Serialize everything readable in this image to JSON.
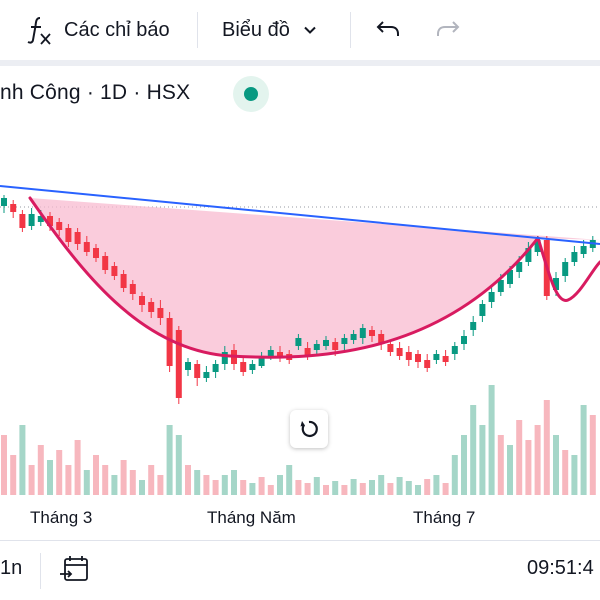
{
  "toolbar": {
    "indicators_label": "Các chỉ báo",
    "chart_type_label": "Biểu đồ",
    "icons": [
      "fx-icon",
      "chevron-down-icon",
      "undo-icon",
      "redo-icon"
    ]
  },
  "legend": {
    "symbol_text": "nh Công · 1D · HSX",
    "status_color": "#089981"
  },
  "chart_data": {
    "type": "candlestick",
    "x_ticks": [
      "Tháng 3",
      "Tháng Năm",
      "Tháng 7"
    ],
    "colors": {
      "up": "#089981",
      "down": "#f23645",
      "trendline": "#2962ff",
      "pattern": "#d81b60",
      "pattern_fill": "#f8bbd0"
    },
    "candles": [
      [
        0,
        206,
        198,
        213,
        195
      ],
      [
        1,
        204,
        212,
        218,
        200
      ],
      [
        2,
        214,
        228,
        232,
        210
      ],
      [
        3,
        226,
        214,
        230,
        208
      ],
      [
        4,
        222,
        216,
        226,
        210
      ],
      [
        5,
        216,
        226,
        231,
        212
      ],
      [
        6,
        222,
        230,
        236,
        218
      ],
      [
        7,
        228,
        242,
        247,
        224
      ],
      [
        8,
        232,
        244,
        250,
        228
      ],
      [
        9,
        242,
        252,
        256,
        236
      ],
      [
        10,
        248,
        258,
        262,
        244
      ],
      [
        11,
        256,
        270,
        274,
        252
      ],
      [
        12,
        266,
        276,
        280,
        262
      ],
      [
        13,
        274,
        288,
        292,
        270
      ],
      [
        14,
        284,
        294,
        300,
        280
      ],
      [
        15,
        296,
        305,
        312,
        292
      ],
      [
        16,
        302,
        312,
        318,
        298
      ],
      [
        17,
        308,
        318,
        325,
        300
      ],
      [
        18,
        318,
        366,
        372,
        312
      ],
      [
        19,
        330,
        398,
        404,
        326
      ],
      [
        20,
        370,
        362,
        376,
        358
      ],
      [
        21,
        364,
        378,
        386,
        360
      ],
      [
        22,
        378,
        372,
        382,
        366
      ],
      [
        23,
        372,
        364,
        378,
        360
      ],
      [
        24,
        364,
        352,
        370,
        346
      ],
      [
        25,
        350,
        364,
        370,
        344
      ],
      [
        26,
        362,
        372,
        376,
        356
      ],
      [
        27,
        370,
        364,
        374,
        360
      ],
      [
        28,
        366,
        358,
        368,
        352
      ],
      [
        29,
        356,
        350,
        360,
        346
      ],
      [
        30,
        352,
        356,
        362,
        346
      ],
      [
        31,
        354,
        360,
        364,
        350
      ],
      [
        32,
        346,
        338,
        350,
        334
      ],
      [
        33,
        348,
        356,
        360,
        342
      ],
      [
        34,
        350,
        344,
        356,
        340
      ],
      [
        35,
        346,
        340,
        350,
        336
      ],
      [
        36,
        342,
        350,
        356,
        338
      ],
      [
        37,
        344,
        338,
        350,
        334
      ],
      [
        38,
        340,
        334,
        344,
        330
      ],
      [
        39,
        338,
        328,
        344,
        324
      ],
      [
        40,
        330,
        336,
        342,
        326
      ],
      [
        41,
        334,
        344,
        350,
        330
      ],
      [
        42,
        344,
        352,
        356,
        340
      ],
      [
        43,
        348,
        356,
        360,
        342
      ],
      [
        44,
        352,
        360,
        366,
        346
      ],
      [
        45,
        354,
        362,
        368,
        350
      ],
      [
        46,
        360,
        368,
        372,
        354
      ],
      [
        47,
        360,
        354,
        364,
        350
      ],
      [
        48,
        356,
        362,
        366,
        350
      ],
      [
        49,
        354,
        346,
        360,
        342
      ],
      [
        50,
        344,
        336,
        350,
        330
      ],
      [
        51,
        330,
        322,
        336,
        316
      ],
      [
        52,
        316,
        304,
        322,
        300
      ],
      [
        53,
        302,
        292,
        308,
        286
      ],
      [
        54,
        292,
        280,
        296,
        274
      ],
      [
        55,
        284,
        270,
        288,
        266
      ],
      [
        56,
        272,
        262,
        278,
        256
      ],
      [
        57,
        262,
        248,
        266,
        242
      ],
      [
        58,
        252,
        240,
        256,
        236
      ],
      [
        59,
        240,
        296,
        300,
        236
      ],
      [
        60,
        290,
        278,
        296,
        272
      ],
      [
        61,
        276,
        262,
        282,
        258
      ],
      [
        62,
        262,
        252,
        266,
        246
      ],
      [
        63,
        254,
        246,
        258,
        240
      ],
      [
        64,
        248,
        240,
        252,
        236
      ]
    ],
    "volumes": [
      [
        0,
        60,
        "down"
      ],
      [
        1,
        40,
        "down"
      ],
      [
        2,
        70,
        "up"
      ],
      [
        3,
        30,
        "down"
      ],
      [
        4,
        50,
        "down"
      ],
      [
        5,
        35,
        "up"
      ],
      [
        6,
        45,
        "down"
      ],
      [
        7,
        30,
        "down"
      ],
      [
        8,
        55,
        "down"
      ],
      [
        9,
        25,
        "up"
      ],
      [
        10,
        40,
        "down"
      ],
      [
        11,
        30,
        "down"
      ],
      [
        12,
        20,
        "up"
      ],
      [
        13,
        35,
        "down"
      ],
      [
        14,
        25,
        "down"
      ],
      [
        15,
        15,
        "up"
      ],
      [
        16,
        30,
        "down"
      ],
      [
        17,
        20,
        "down"
      ],
      [
        18,
        70,
        "up"
      ],
      [
        19,
        60,
        "up"
      ],
      [
        20,
        30,
        "down"
      ],
      [
        21,
        25,
        "up"
      ],
      [
        22,
        20,
        "down"
      ],
      [
        23,
        15,
        "down"
      ],
      [
        24,
        20,
        "up"
      ],
      [
        25,
        25,
        "up"
      ],
      [
        26,
        15,
        "down"
      ],
      [
        27,
        12,
        "up"
      ],
      [
        28,
        18,
        "down"
      ],
      [
        29,
        10,
        "down"
      ],
      [
        30,
        20,
        "up"
      ],
      [
        31,
        30,
        "up"
      ],
      [
        32,
        15,
        "down"
      ],
      [
        33,
        12,
        "down"
      ],
      [
        34,
        18,
        "up"
      ],
      [
        35,
        10,
        "down"
      ],
      [
        36,
        14,
        "up"
      ],
      [
        37,
        10,
        "down"
      ],
      [
        38,
        16,
        "up"
      ],
      [
        39,
        12,
        "down"
      ],
      [
        40,
        15,
        "up"
      ],
      [
        41,
        20,
        "up"
      ],
      [
        42,
        12,
        "down"
      ],
      [
        43,
        18,
        "up"
      ],
      [
        44,
        14,
        "up"
      ],
      [
        45,
        10,
        "up"
      ],
      [
        46,
        16,
        "down"
      ],
      [
        47,
        20,
        "up"
      ],
      [
        48,
        12,
        "down"
      ],
      [
        49,
        40,
        "up"
      ],
      [
        50,
        60,
        "up"
      ],
      [
        51,
        90,
        "up"
      ],
      [
        52,
        70,
        "up"
      ],
      [
        53,
        110,
        "up"
      ],
      [
        54,
        60,
        "down"
      ],
      [
        55,
        50,
        "up"
      ],
      [
        56,
        75,
        "down"
      ],
      [
        57,
        55,
        "down"
      ],
      [
        58,
        70,
        "down"
      ],
      [
        59,
        95,
        "down"
      ],
      [
        60,
        60,
        "up"
      ],
      [
        61,
        45,
        "down"
      ],
      [
        62,
        40,
        "up"
      ],
      [
        63,
        90,
        "up"
      ],
      [
        64,
        80,
        "down"
      ]
    ]
  },
  "bottombar": {
    "interval_label": "1n",
    "time_label": "09:51:4"
  }
}
